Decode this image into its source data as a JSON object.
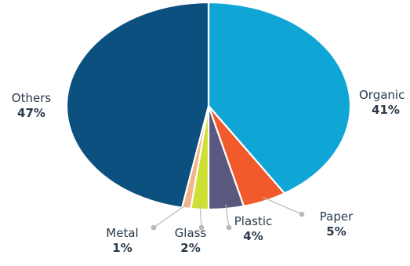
{
  "chart_data": {
    "type": "pie",
    "title": "",
    "slices": [
      {
        "label": "Organic",
        "value": 41,
        "display": "41%",
        "color": "#0fa6d6"
      },
      {
        "label": "Paper",
        "value": 5,
        "display": "5%",
        "color": "#f15a2b"
      },
      {
        "label": "Plastic",
        "value": 4,
        "display": "4%",
        "color": "#5b587f"
      },
      {
        "label": "Glass",
        "value": 2,
        "display": "2%",
        "color": "#cfe034"
      },
      {
        "label": "Metal",
        "value": 1,
        "display": "1%",
        "color": "#f3b48a"
      },
      {
        "label": "Others",
        "value": 47,
        "display": "47%",
        "color": "#0c507f"
      }
    ],
    "start": "top, clockwise",
    "leader_color": "#b9b9b9"
  }
}
